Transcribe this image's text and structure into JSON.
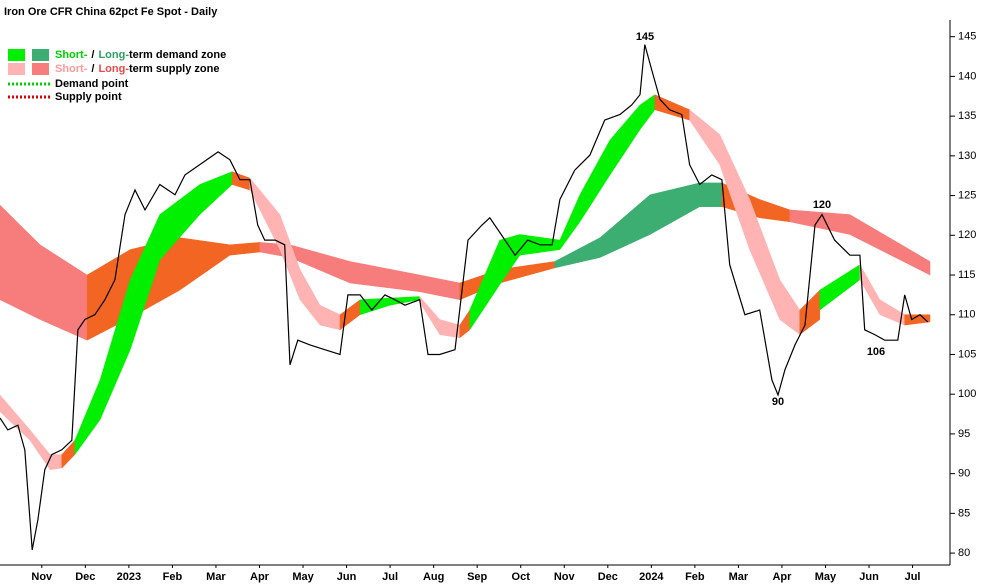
{
  "chart_data": {
    "type": "line",
    "title": "Iron Ore CFR China 62pct Fe Spot - Daily",
    "legend": [
      {
        "swatches": [
          "#00f000",
          "#3cae72"
        ],
        "parts": [
          {
            "text": "Short-",
            "color": "#00d000"
          },
          {
            "text": "/"
          },
          {
            "text": "Long-",
            "color": "#2e9e62"
          },
          {
            "text": "term demand zone"
          }
        ]
      },
      {
        "swatches": [
          "#ffb3b3",
          "#f77c7c"
        ],
        "parts": [
          {
            "text": "Short-",
            "color": "#ff9a9a"
          },
          {
            "text": "/"
          },
          {
            "text": "Long-",
            "color": "#f04848"
          },
          {
            "text": "term supply zone"
          }
        ]
      },
      {
        "line_color": "#00d000",
        "parts": [
          {
            "text": "Demand point"
          }
        ]
      },
      {
        "line_color": "#e00000",
        "parts": [
          {
            "text": "Supply point"
          }
        ]
      }
    ],
    "annotations": [
      "145",
      "120",
      "90",
      "106"
    ],
    "xlim": [
      -0.46,
      21.36
    ],
    "xticks": [
      {
        "value": 0.5,
        "label": "Nov"
      },
      {
        "value": 1.5,
        "label": "Dec"
      },
      {
        "value": 2.5,
        "label": "2023"
      },
      {
        "value": 3.5,
        "label": "Feb"
      },
      {
        "value": 4.5,
        "label": "Mar"
      },
      {
        "value": 5.5,
        "label": "Apr"
      },
      {
        "value": 6.5,
        "label": "May"
      },
      {
        "value": 7.5,
        "label": "Jun"
      },
      {
        "value": 8.5,
        "label": "Jul"
      },
      {
        "value": 9.5,
        "label": "Aug"
      },
      {
        "value": 10.5,
        "label": "Sep"
      },
      {
        "value": 11.5,
        "label": "Oct"
      },
      {
        "value": 12.5,
        "label": "Nov"
      },
      {
        "value": 13.5,
        "label": "Dec"
      },
      {
        "value": 14.5,
        "label": "2024"
      },
      {
        "value": 15.5,
        "label": "Feb"
      },
      {
        "value": 16.5,
        "label": "Mar"
      },
      {
        "value": 17.5,
        "label": "Apr"
      },
      {
        "value": 18.5,
        "label": "May"
      },
      {
        "value": 19.5,
        "label": "Jun"
      },
      {
        "value": 20.5,
        "label": "Jul"
      }
    ],
    "ylim": [
      78.5,
      147.1
    ],
    "yticks": [
      80,
      85,
      90,
      95,
      100,
      105,
      110,
      115,
      120,
      125,
      130,
      135,
      140,
      145
    ],
    "zones": [
      {
        "color": "#f77c7c",
        "x": [
          -0.46,
          0.46,
          1.54
        ],
        "upper": [
          123.8,
          118.8,
          115.0
        ],
        "lower": [
          111.9,
          109.4,
          106.8
        ]
      },
      {
        "color": "#f26522",
        "x": [
          1.54,
          2.53,
          3.67,
          4.82,
          5.51
        ],
        "upper": [
          115.0,
          118.2,
          119.7,
          118.8,
          119.1
        ],
        "lower": [
          106.8,
          109.6,
          113.1,
          117.5,
          117.9
        ]
      },
      {
        "color": "#f77c7c",
        "x": [
          5.51,
          6.2,
          7.58,
          9.18,
          10.1
        ],
        "upper": [
          119.1,
          118.8,
          116.7,
          115.0,
          114.0
        ],
        "lower": [
          117.9,
          117.2,
          114.0,
          112.9,
          111.9
        ]
      },
      {
        "color": "#f26522",
        "x": [
          10.1,
          11.02,
          12.28
        ],
        "upper": [
          114.0,
          115.7,
          116.7
        ],
        "lower": [
          111.9,
          114.0,
          115.9
        ]
      },
      {
        "color": "#3cae72",
        "x": [
          12.28,
          13.32,
          14.47,
          15.61,
          16.12
        ],
        "upper": [
          116.7,
          119.7,
          125.1,
          126.6,
          126.6
        ],
        "lower": [
          115.9,
          117.2,
          120.1,
          123.6,
          123.6
        ]
      },
      {
        "color": "#f26522",
        "x": [
          16.12,
          16.99,
          17.68
        ],
        "upper": [
          126.6,
          124.5,
          123.2
        ],
        "lower": [
          123.6,
          122.2,
          121.7
        ]
      },
      {
        "color": "#f77c7c",
        "x": [
          17.68,
          19.06,
          20.9
        ],
        "upper": [
          123.2,
          122.6,
          116.7
        ],
        "lower": [
          121.7,
          120.1,
          115.0
        ]
      },
      {
        "color": "#ffb3b3",
        "x": [
          -0.46,
          0.23,
          0.69,
          0.96
        ],
        "upper": [
          99.9,
          95.5,
          92.4,
          92.4
        ],
        "lower": [
          97.8,
          94.2,
          90.5,
          90.7
        ]
      },
      {
        "color": "#f26522",
        "x": [
          0.96,
          1.26
        ],
        "upper": [
          92.4,
          94.2
        ],
        "lower": [
          90.7,
          92.4
        ]
      },
      {
        "color": "#00f000",
        "x": [
          1.26,
          1.84,
          2.53,
          3.21,
          4.13,
          4.87
        ],
        "upper": [
          94.2,
          101.8,
          114.4,
          122.6,
          126.4,
          128.0
        ],
        "lower": [
          92.4,
          96.8,
          105.6,
          116.9,
          122.6,
          126.4
        ]
      },
      {
        "color": "#f26522",
        "x": [
          4.87,
          5.28
        ],
        "upper": [
          128.0,
          127.2
        ],
        "lower": [
          126.4,
          125.7
        ]
      },
      {
        "color": "#ffb3b3",
        "x": [
          5.28,
          5.97,
          6.43,
          6.89,
          7.35
        ],
        "upper": [
          127.2,
          122.6,
          115.7,
          111.2,
          110.0
        ],
        "lower": [
          125.7,
          118.2,
          111.9,
          108.7,
          108.1
        ]
      },
      {
        "color": "#f26522",
        "x": [
          7.35,
          7.81
        ],
        "upper": [
          110.0,
          111.9
        ],
        "lower": [
          108.1,
          110.0
        ]
      },
      {
        "color": "#00f000",
        "x": [
          7.81,
          8.5,
          9.18
        ],
        "upper": [
          111.9,
          112.1,
          112.3
        ],
        "lower": [
          110.0,
          111.2,
          111.9
        ]
      },
      {
        "color": "#ffb3b3",
        "x": [
          9.18,
          9.64,
          10.1
        ],
        "upper": [
          112.3,
          109.4,
          108.7
        ],
        "lower": [
          111.6,
          107.5,
          107.1
        ]
      },
      {
        "color": "#f26522",
        "x": [
          10.1,
          10.33
        ],
        "upper": [
          108.7,
          110.6
        ],
        "lower": [
          107.1,
          108.1
        ]
      },
      {
        "color": "#00f000",
        "x": [
          10.33,
          11.02,
          11.48,
          12.4,
          12.86,
          13.55,
          14.24,
          14.58
        ],
        "upper": [
          110.6,
          119.4,
          120.1,
          119.4,
          125.1,
          132.0,
          136.4,
          137.7
        ],
        "lower": [
          108.1,
          113.8,
          117.5,
          118.2,
          121.7,
          127.6,
          133.3,
          135.8
        ]
      },
      {
        "color": "#f26522",
        "x": [
          14.58,
          15.38
        ],
        "upper": [
          137.7,
          135.8
        ],
        "lower": [
          135.8,
          134.5
        ]
      },
      {
        "color": "#ffb3b3",
        "x": [
          15.38,
          16.07,
          16.76,
          17.45,
          17.91
        ],
        "upper": [
          135.8,
          132.7,
          124.5,
          114.4,
          110.6
        ],
        "lower": [
          134.5,
          128.9,
          118.2,
          109.4,
          107.5
        ]
      },
      {
        "color": "#f26522",
        "x": [
          17.91,
          18.37
        ],
        "upper": [
          110.6,
          113.1
        ],
        "lower": [
          107.5,
          109.4
        ]
      },
      {
        "color": "#00f000",
        "x": [
          18.37,
          19.29
        ],
        "upper": [
          113.1,
          116.3
        ],
        "lower": [
          110.6,
          114.4
        ]
      },
      {
        "color": "#ffb3b3",
        "x": [
          19.29,
          19.75,
          20.32
        ],
        "upper": [
          116.3,
          111.9,
          110.0
        ],
        "lower": [
          114.4,
          110.0,
          108.7
        ]
      },
      {
        "color": "#f26522",
        "x": [
          20.32,
          20.9
        ],
        "upper": [
          110.0,
          110.0
        ],
        "lower": [
          108.7,
          109.1
        ]
      }
    ],
    "series": [
      {
        "color": "#000000",
        "x": [
          -0.46,
          -0.28,
          -0.05,
          0.11,
          0.28,
          0.41,
          0.57,
          0.73,
          0.96,
          1.19,
          1.33,
          1.49,
          1.72,
          1.95,
          2.18,
          2.41,
          2.64,
          2.87,
          3.21,
          3.56,
          3.79,
          4.13,
          4.55,
          4.82,
          5.05,
          5.28,
          5.46,
          5.62,
          5.86,
          6.08,
          6.2,
          6.38,
          6.66,
          7.0,
          7.35,
          7.53,
          7.81,
          8.08,
          8.38,
          8.61,
          8.84,
          9.18,
          9.37,
          9.64,
          9.99,
          10.29,
          10.61,
          10.79,
          11.14,
          11.37,
          11.66,
          11.94,
          12.22,
          12.4,
          12.74,
          13.09,
          13.43,
          13.78,
          14.05,
          14.24,
          14.35,
          14.51,
          14.7,
          14.92,
          15.2,
          15.38,
          15.61,
          15.89,
          16.12,
          16.3,
          16.65,
          16.99,
          17.27,
          17.41,
          17.57,
          17.8,
          18.03,
          18.26,
          18.42,
          18.71,
          19.06,
          19.29,
          19.4,
          19.63,
          19.86,
          20.16,
          20.32,
          20.48,
          20.67,
          20.85
        ],
        "values": [
          97.0,
          95.5,
          96.1,
          93.0,
          80.4,
          84.2,
          90.5,
          92.4,
          93.0,
          94.2,
          108.1,
          109.4,
          110.0,
          111.9,
          114.4,
          122.6,
          125.7,
          123.2,
          126.4,
          125.1,
          127.6,
          128.9,
          130.5,
          129.5,
          127.0,
          127.0,
          121.3,
          119.4,
          119.4,
          118.8,
          103.7,
          106.8,
          106.2,
          105.6,
          105.0,
          112.5,
          112.5,
          110.6,
          112.5,
          111.9,
          111.2,
          111.9,
          105.0,
          105.0,
          105.6,
          119.4,
          121.3,
          122.2,
          119.4,
          117.5,
          119.4,
          118.8,
          118.8,
          124.5,
          128.2,
          130.1,
          134.5,
          135.2,
          136.4,
          137.7,
          144.0,
          140.8,
          137.1,
          135.8,
          135.2,
          128.9,
          126.4,
          127.6,
          127.0,
          116.3,
          110.0,
          110.6,
          101.8,
          99.9,
          103.1,
          106.2,
          108.7,
          121.3,
          122.6,
          119.4,
          117.5,
          117.5,
          108.1,
          107.5,
          106.8,
          106.8,
          112.5,
          109.4,
          110.0,
          109.1
        ]
      }
    ]
  }
}
